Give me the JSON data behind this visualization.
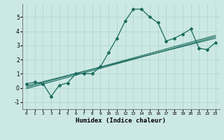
{
  "xlabel": "Humidex (Indice chaleur)",
  "background_color": "#cce8e4",
  "grid_color": "#b0d8d2",
  "line_color": "#1a6b5e",
  "xlim": [
    -0.5,
    23.5
  ],
  "ylim": [
    -1.5,
    5.9
  ],
  "yticks": [
    -1,
    0,
    1,
    2,
    3,
    4,
    5
  ],
  "xticks": [
    0,
    1,
    2,
    3,
    4,
    5,
    6,
    7,
    8,
    9,
    10,
    11,
    12,
    13,
    14,
    15,
    16,
    17,
    18,
    19,
    20,
    21,
    22,
    23
  ],
  "curve1_x": [
    0,
    1,
    2,
    3,
    4,
    5,
    6,
    7,
    8,
    9,
    10,
    11,
    12,
    13,
    14,
    15,
    16,
    17,
    18,
    19,
    20,
    21,
    22,
    23
  ],
  "curve1_y": [
    0.3,
    0.4,
    0.3,
    -0.6,
    0.2,
    0.35,
    1.0,
    1.0,
    1.0,
    1.5,
    2.5,
    3.5,
    4.7,
    5.55,
    5.55,
    5.0,
    4.6,
    3.3,
    3.5,
    3.8,
    4.15,
    2.8,
    2.7,
    3.2
  ],
  "line1_x": [
    0,
    23
  ],
  "line1_y": [
    0.15,
    3.5
  ],
  "line2_x": [
    0,
    23
  ],
  "line2_y": [
    -0.05,
    3.6
  ],
  "line3_x": [
    0,
    23
  ],
  "line3_y": [
    0.05,
    3.7
  ]
}
